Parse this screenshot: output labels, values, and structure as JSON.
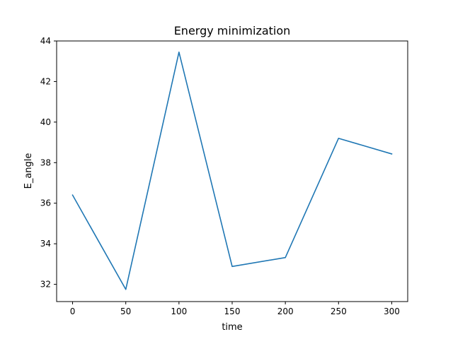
{
  "chart_data": {
    "type": "line",
    "title": "Energy minimization",
    "xlabel": "time",
    "ylabel": "E_angle",
    "xlim": [
      -15,
      315
    ],
    "ylim": [
      31.15,
      44
    ],
    "x": [
      0,
      50,
      100,
      150,
      200,
      250,
      300
    ],
    "series": [
      {
        "values": [
          36.4,
          31.75,
          43.45,
          32.88,
          33.32,
          39.2,
          38.43
        ],
        "color": "#1f77b4"
      }
    ],
    "xticks": [
      "0",
      "50",
      "100",
      "150",
      "200",
      "250",
      "300"
    ],
    "yticks": [
      "32",
      "34",
      "36",
      "38",
      "40",
      "42",
      "44"
    ],
    "grid": false,
    "legend": "none"
  }
}
